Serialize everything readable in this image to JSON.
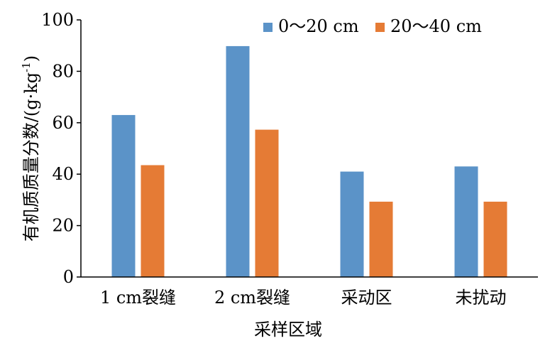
{
  "chart_data": {
    "type": "bar",
    "categories": [
      "1 cm裂缝",
      "2 cm裂缝",
      "采动区",
      "未扰动"
    ],
    "series": [
      {
        "name": "0～20 cm",
        "values": [
          63,
          89.8,
          41,
          43
        ],
        "color": "#5B93C8"
      },
      {
        "name": "20～40 cm",
        "values": [
          43.5,
          57.3,
          29.3,
          29.3
        ],
        "color": "#E57B35"
      }
    ],
    "xlabel": "采样区域",
    "ylabel_main": "有机质质量分数/(g·kg",
    "ylabel_sup": "-1",
    "ylabel_close": ")",
    "ylim": [
      0,
      100
    ],
    "yticks": [
      0,
      20,
      40,
      60,
      80,
      100
    ],
    "legend_position": "top-right",
    "grid": false
  }
}
